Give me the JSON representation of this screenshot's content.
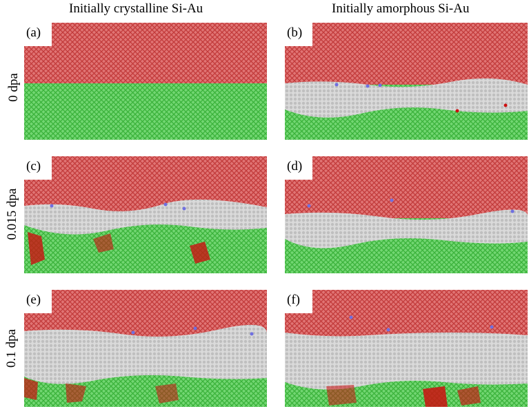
{
  "columns": {
    "left": "Initially crystalline Si-Au",
    "right": "Initially amorphous Si-Au"
  },
  "rows": {
    "row1": "0 dpa",
    "row2": "0.015 dpa",
    "row3": "0.1 dpa"
  },
  "panels": {
    "a": {
      "label": "(a)"
    },
    "b": {
      "label": "(b)"
    },
    "c": {
      "label": "(c)"
    },
    "d": {
      "label": "(d)"
    },
    "e": {
      "label": "(e)"
    },
    "f": {
      "label": "(f)"
    }
  },
  "colors": {
    "au_crystal": "#d85656",
    "si_crystal": "#4fc84f",
    "amorphous": "#c9c9c9",
    "defect_red": "#cc1111",
    "defect_blue": "#6f6fe0"
  }
}
